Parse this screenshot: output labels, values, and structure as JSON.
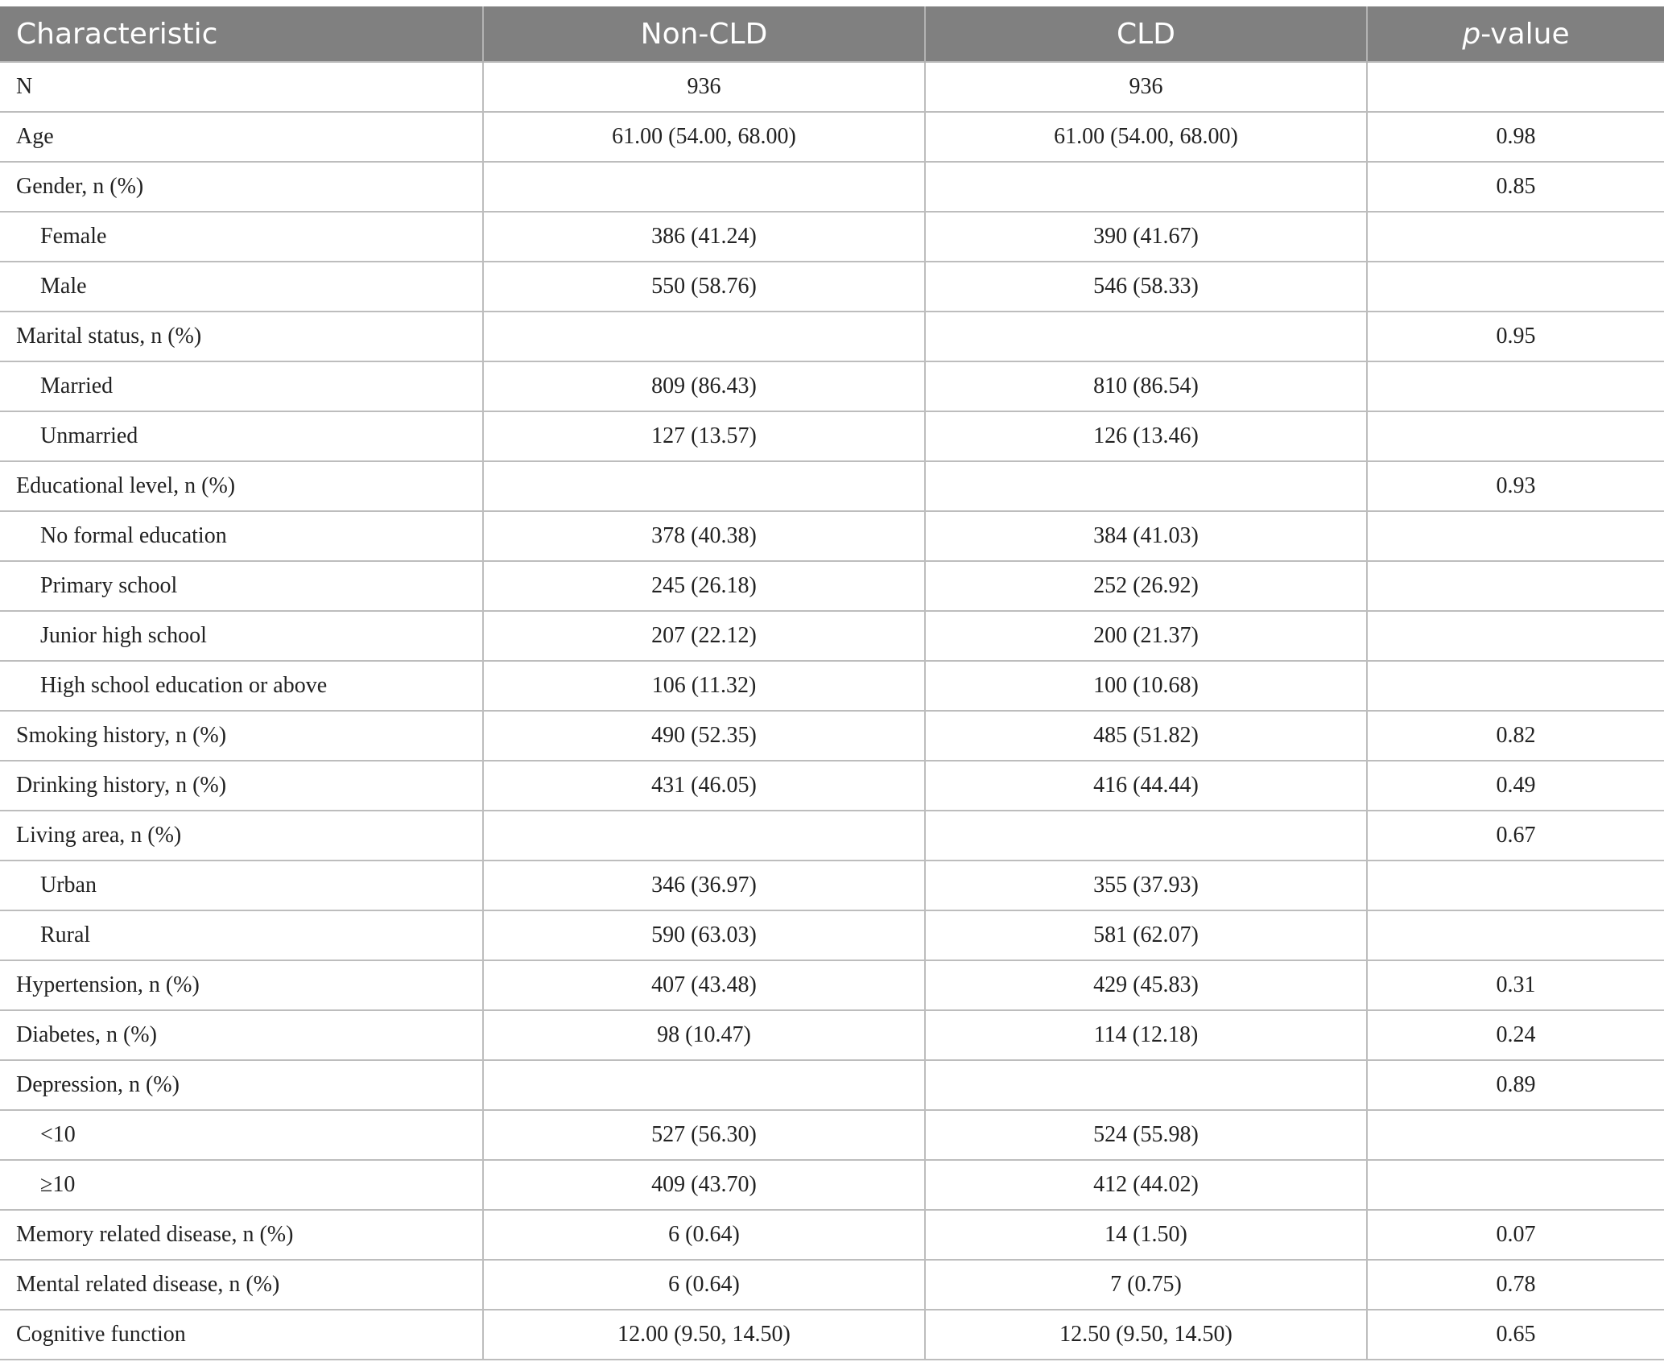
{
  "table": {
    "headers": {
      "characteristic": "Characteristic",
      "non_cld": "Non-CLD",
      "cld": "CLD",
      "p_prefix": "p",
      "p_suffix": "-value"
    },
    "rows": [
      {
        "label": "N",
        "non_cld": "936",
        "cld": "936",
        "p": "",
        "sub": false
      },
      {
        "label": "Age",
        "non_cld": "61.00 (54.00, 68.00)",
        "cld": "61.00 (54.00, 68.00)",
        "p": "0.98",
        "sub": false
      },
      {
        "label": "Gender, n (%)",
        "non_cld": "",
        "cld": "",
        "p": "0.85",
        "sub": false
      },
      {
        "label": "Female",
        "non_cld": "386 (41.24)",
        "cld": "390 (41.67)",
        "p": "",
        "sub": true
      },
      {
        "label": "Male",
        "non_cld": "550 (58.76)",
        "cld": "546 (58.33)",
        "p": "",
        "sub": true
      },
      {
        "label": "Marital status, n (%)",
        "non_cld": "",
        "cld": "",
        "p": "0.95",
        "sub": false
      },
      {
        "label": "Married",
        "non_cld": "809 (86.43)",
        "cld": "810 (86.54)",
        "p": "",
        "sub": true
      },
      {
        "label": "Unmarried",
        "non_cld": "127 (13.57)",
        "cld": "126 (13.46)",
        "p": "",
        "sub": true
      },
      {
        "label": "Educational level, n (%)",
        "non_cld": "",
        "cld": "",
        "p": "0.93",
        "sub": false
      },
      {
        "label": "No formal education",
        "non_cld": "378 (40.38)",
        "cld": "384 (41.03)",
        "p": "",
        "sub": true
      },
      {
        "label": "Primary school",
        "non_cld": "245 (26.18)",
        "cld": "252 (26.92)",
        "p": "",
        "sub": true
      },
      {
        "label": "Junior high school",
        "non_cld": "207 (22.12)",
        "cld": "200 (21.37)",
        "p": "",
        "sub": true
      },
      {
        "label": "High school education or above",
        "non_cld": "106 (11.32)",
        "cld": "100 (10.68)",
        "p": "",
        "sub": true
      },
      {
        "label": "Smoking history, n (%)",
        "non_cld": "490 (52.35)",
        "cld": "485 (51.82)",
        "p": "0.82",
        "sub": false
      },
      {
        "label": "Drinking history, n (%)",
        "non_cld": "431 (46.05)",
        "cld": "416 (44.44)",
        "p": "0.49",
        "sub": false
      },
      {
        "label": "Living area, n (%)",
        "non_cld": "",
        "cld": "",
        "p": "0.67",
        "sub": false
      },
      {
        "label": "Urban",
        "non_cld": "346 (36.97)",
        "cld": "355 (37.93)",
        "p": "",
        "sub": true
      },
      {
        "label": "Rural",
        "non_cld": "590 (63.03)",
        "cld": "581 (62.07)",
        "p": "",
        "sub": true
      },
      {
        "label": "Hypertension, n (%)",
        "non_cld": "407 (43.48)",
        "cld": "429 (45.83)",
        "p": "0.31",
        "sub": false
      },
      {
        "label": "Diabetes, n (%)",
        "non_cld": "98 (10.47)",
        "cld": "114 (12.18)",
        "p": "0.24",
        "sub": false
      },
      {
        "label": "Depression, n (%)",
        "non_cld": "",
        "cld": "",
        "p": "0.89",
        "sub": false
      },
      {
        "label": "<10",
        "non_cld": "527 (56.30)",
        "cld": "524 (55.98)",
        "p": "",
        "sub": true
      },
      {
        "label": "≥10",
        "non_cld": "409 (43.70)",
        "cld": "412 (44.02)",
        "p": "",
        "sub": true
      },
      {
        "label": "Memory related disease, n (%)",
        "non_cld": "6 (0.64)",
        "cld": "14 (1.50)",
        "p": "0.07",
        "sub": false
      },
      {
        "label": "Mental related disease, n (%)",
        "non_cld": "6 (0.64)",
        "cld": "7 (0.75)",
        "p": "0.78",
        "sub": false
      },
      {
        "label": "Cognitive function",
        "non_cld": "12.00 (9.50, 14.50)",
        "cld": "12.50 (9.50, 14.50)",
        "p": "0.65",
        "sub": false
      }
    ]
  }
}
